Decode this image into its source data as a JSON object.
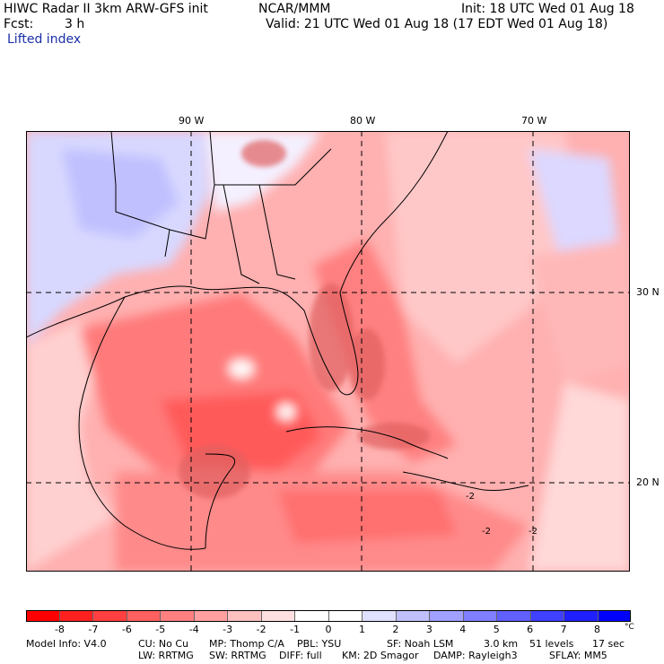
{
  "header": {
    "title": "HIWC Radar II 3km ARW-GFS init",
    "org": "NCAR/MMM",
    "init": "Init: 18 UTC Wed 01 Aug 18",
    "fcst_label": "Fcst:",
    "fcst_value": "3 h",
    "valid": "Valid: 21 UTC Wed 01 Aug 18 (17 EDT Wed 01 Aug 18)",
    "field": "Lifted index"
  },
  "lon_labels": [
    "90 W",
    "80 W",
    "70 W"
  ],
  "lat_labels": [
    "30 N",
    "20 N"
  ],
  "colorbar": {
    "colors": [
      "#ff0000",
      "#ff2020",
      "#ff4040",
      "#ff6060",
      "#ff8080",
      "#ffa0a0",
      "#ffc0c0",
      "#ffe0e0",
      "#ffffff",
      "#ffffff",
      "#e0e0ff",
      "#c0c0ff",
      "#a0a0ff",
      "#8080ff",
      "#6060ff",
      "#4040ff",
      "#2020ff",
      "#0000ff"
    ],
    "ticks": [
      "-8",
      "-7",
      "-6",
      "-5",
      "-4",
      "-3",
      "-2",
      "-1",
      "0",
      "1",
      "2",
      "3",
      "4",
      "5",
      "6",
      "7",
      "8"
    ],
    "unit": "°C"
  },
  "contour_labels": [
    "-2",
    "-2",
    "-2"
  ],
  "footer": {
    "line1": [
      "Model Info: V4.0",
      "CU: No Cu",
      "MP: Thomp C/A",
      "PBL: YSU",
      "SF: Noah LSM",
      "3.0 km",
      "51 levels",
      "17 sec"
    ],
    "line2": [
      "LW: RRTMG",
      "SW: RRTMG",
      "DIFF: full",
      "KM: 2D Smagor",
      "DAMP: Rayleigh3",
      "SFLAY: MM5"
    ]
  }
}
